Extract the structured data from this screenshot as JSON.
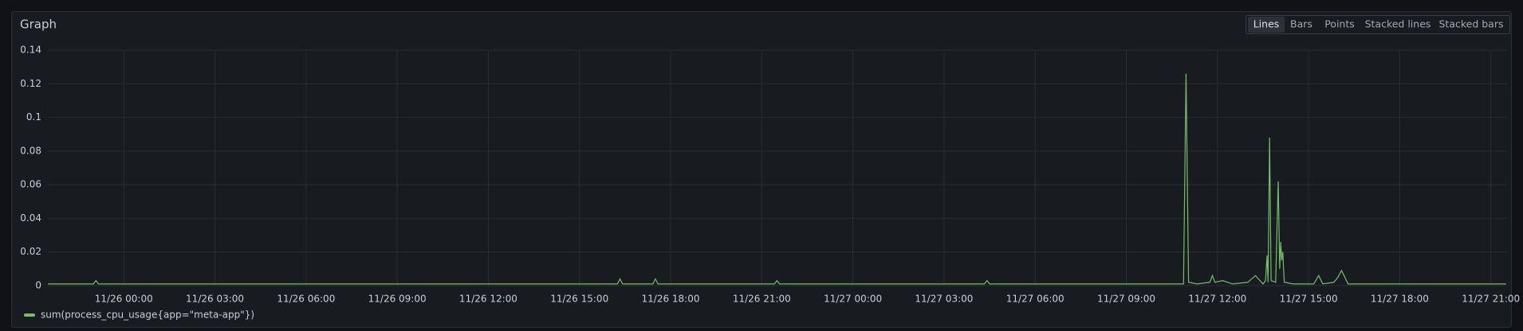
{
  "panel": {
    "title": "Graph",
    "modes": [
      "Lines",
      "Bars",
      "Points",
      "Stacked lines",
      "Stacked bars"
    ],
    "active_mode": "Lines"
  },
  "chart_data": {
    "type": "line",
    "x": [
      "11/25 21:30",
      "11/25 22:30",
      "11/25 23:00",
      "11/25 23:05",
      "11/25 23:10",
      "11/26 00:30",
      "11/26 01:30",
      "11/26 02:30",
      "11/26 03:30",
      "11/26 04:30",
      "11/26 05:30",
      "11/26 06:30",
      "11/26 07:30",
      "11/26 08:30",
      "11/26 09:30",
      "11/26 10:30",
      "11/26 11:30",
      "11/26 12:30",
      "11/26 13:30",
      "11/26 14:30",
      "11/26 15:30",
      "11/26 16:15",
      "11/26 16:20",
      "11/26 16:25",
      "11/26 17:25",
      "11/26 17:30",
      "11/26 17:35",
      "11/26 18:30",
      "11/26 19:30",
      "11/26 20:30",
      "11/26 21:25",
      "11/26 21:30",
      "11/26 21:35",
      "11/26 22:30",
      "11/26 23:30",
      "11/27 00:30",
      "11/27 01:30",
      "11/27 02:30",
      "11/27 03:30",
      "11/27 04:20",
      "11/27 04:25",
      "11/27 04:30",
      "11/27 05:30",
      "11/27 06:30",
      "11/27 07:30",
      "11/27 08:30",
      "11/27 09:30",
      "11/27 10:30",
      "11/27 10:53",
      "11/27 10:58",
      "11/27 11:03",
      "11/27 11:20",
      "11/27 11:45",
      "11/27 11:50",
      "11/27 11:55",
      "11/27 12:10",
      "11/27 12:30",
      "11/27 13:00",
      "11/27 13:15",
      "11/27 13:30",
      "11/27 13:35",
      "11/27 13:38",
      "11/27 13:40",
      "11/27 13:43",
      "11/27 13:46",
      "11/27 13:55",
      "11/27 14:00",
      "11/27 14:03",
      "11/27 14:05",
      "11/27 14:07",
      "11/27 14:09",
      "11/27 14:12",
      "11/27 14:30",
      "11/27 15:10",
      "11/27 15:20",
      "11/27 15:28",
      "11/27 15:50",
      "11/27 15:58",
      "11/27 16:05",
      "11/27 16:10",
      "11/27 16:18",
      "11/27 17:30",
      "11/27 18:30",
      "11/27 19:30",
      "11/27 20:30",
      "11/27 21:30"
    ],
    "series": [
      {
        "name": "sum(process_cpu_usage{app=\"meta-app\"})",
        "color": "#73bf69",
        "values": [
          0.001,
          0.001,
          0.001,
          0.003,
          0.001,
          0.001,
          0.001,
          0.001,
          0.001,
          0.001,
          0.001,
          0.001,
          0.001,
          0.001,
          0.001,
          0.001,
          0.001,
          0.001,
          0.001,
          0.001,
          0.001,
          0.001,
          0.004,
          0.001,
          0.001,
          0.004,
          0.001,
          0.001,
          0.001,
          0.001,
          0.001,
          0.003,
          0.001,
          0.001,
          0.001,
          0.001,
          0.001,
          0.001,
          0.001,
          0.001,
          0.003,
          0.001,
          0.001,
          0.001,
          0.001,
          0.001,
          0.001,
          0.001,
          0.001,
          0.126,
          0.002,
          0.001,
          0.002,
          0.006,
          0.002,
          0.003,
          0.001,
          0.002,
          0.006,
          0.001,
          0.003,
          0.018,
          0.002,
          0.088,
          0.003,
          0.002,
          0.062,
          0.01,
          0.026,
          0.015,
          0.02,
          0.002,
          0.001,
          0.001,
          0.006,
          0.001,
          0.002,
          0.005,
          0.009,
          0.006,
          0.001,
          0.001,
          0.001,
          0.001,
          0.001,
          0.001
        ]
      }
    ],
    "xlim": [
      "11/25 21:30",
      "11/27 21:32"
    ],
    "xticks": [
      "11/26 00:00",
      "11/26 03:00",
      "11/26 06:00",
      "11/26 09:00",
      "11/26 12:00",
      "11/26 15:00",
      "11/26 18:00",
      "11/26 21:00",
      "11/27 00:00",
      "11/27 03:00",
      "11/27 06:00",
      "11/27 09:00",
      "11/27 12:00",
      "11/27 15:00",
      "11/27 18:00",
      "11/27 21:00"
    ],
    "ylim": [
      0,
      0.14
    ],
    "yticks": [
      0,
      0.02,
      0.04,
      0.06,
      0.08,
      0.1,
      0.12,
      0.14
    ],
    "grid": true
  }
}
